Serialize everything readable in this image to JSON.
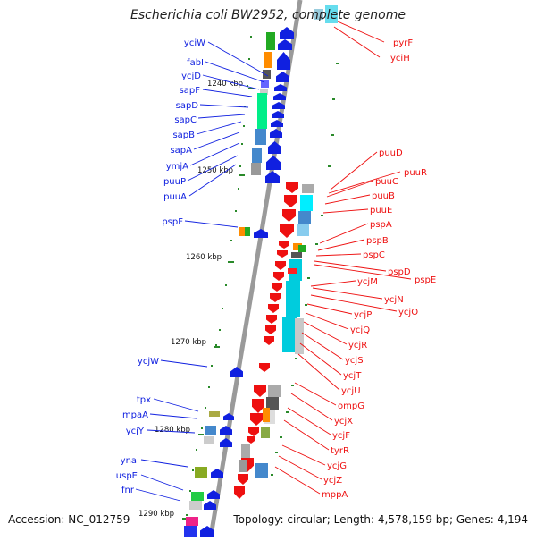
{
  "title": "Escherichia coli BW2952, complete genome",
  "footer": {
    "accession": "Accession: NC_012759",
    "summary": "Topology: circular; Length: 4,578,159 bp; Genes: 4,194"
  },
  "colors": {
    "forward_gene": "#1020e0",
    "reverse_gene": "#ee1010",
    "axis": "#9a9a9a",
    "tick": "#2a8a2a",
    "ruler_label": "#111111"
  },
  "ruler_labels": [
    "1240 kbp",
    "1250 kbp",
    "1260 kbp",
    "1270 kbp",
    "1280 kbp",
    "1290 kbp"
  ],
  "left_genes": [
    "yciW",
    "fabI",
    "ycjD",
    "sapF",
    "sapD",
    "sapC",
    "sapB",
    "sapA",
    "ymjA",
    "puuP",
    "puuA",
    "pspF",
    "ycjW",
    "tpx",
    "mpaA",
    "ycjY",
    "ynaI",
    "uspE",
    "fnr"
  ],
  "right_genes": [
    "pyrF",
    "yciH",
    "puuD",
    "puuR",
    "puuC",
    "puuB",
    "puuE",
    "pspA",
    "pspB",
    "pspC",
    "pspD",
    "pspE",
    "ycjM",
    "ycjN",
    "ycjO",
    "ycjP",
    "ycjQ",
    "ycjR",
    "ycjS",
    "ycjT",
    "ycjU",
    "ompG",
    "ycjX",
    "ycjF",
    "tyrR",
    "ycjG",
    "ycjZ",
    "mppA"
  ]
}
